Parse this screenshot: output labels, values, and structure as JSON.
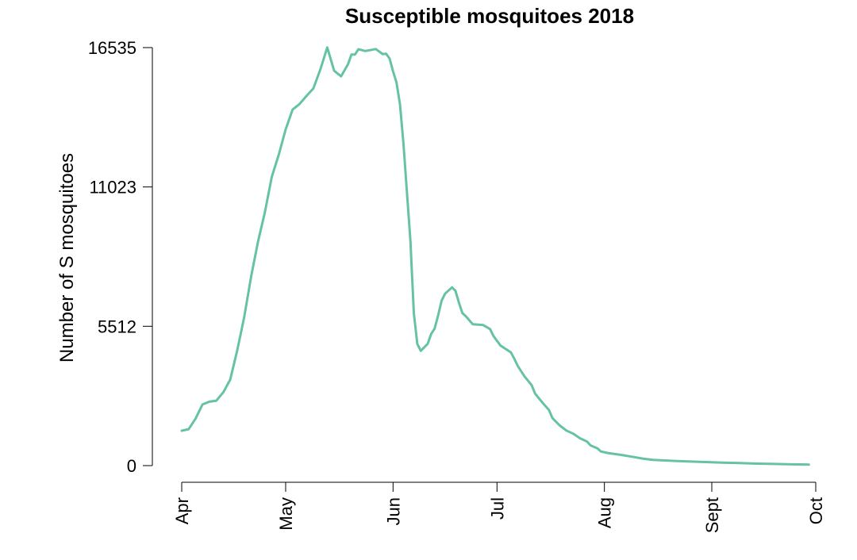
{
  "chart_data": {
    "type": "line",
    "title": "Susceptible mosquitoes 2018",
    "xlabel": "",
    "ylabel": "Number of S mosquitoes",
    "x_tick_labels": [
      "Apr",
      "May",
      "Jun",
      "Jul",
      "Aug",
      "Sept",
      "Oct"
    ],
    "x_tick_dates": [
      "2018-04-01",
      "2018-05-01",
      "2018-06-01",
      "2018-07-01",
      "2018-08-01",
      "2018-09-01",
      "2018-10-01"
    ],
    "y_tick_labels": [
      "0",
      "5512",
      "11023",
      "16535"
    ],
    "y_tick_values": [
      0,
      5512,
      11023,
      16535
    ],
    "ylim": [
      0,
      16535
    ],
    "xlim": [
      "2018-04-01",
      "2018-10-01"
    ],
    "grid": false,
    "legend": "none",
    "color": "#66c2a5",
    "series": [
      {
        "x": [
          "2018-04-01",
          "2018-04-03",
          "2018-04-05",
          "2018-04-07",
          "2018-04-09",
          "2018-04-11",
          "2018-04-13",
          "2018-04-15",
          "2018-04-17",
          "2018-04-19",
          "2018-04-21",
          "2018-04-23",
          "2018-04-25",
          "2018-04-27",
          "2018-04-29",
          "2018-05-01",
          "2018-05-03",
          "2018-05-05",
          "2018-05-07",
          "2018-05-09",
          "2018-05-11",
          "2018-05-13",
          "2018-05-15",
          "2018-05-17",
          "2018-05-19",
          "2018-05-20",
          "2018-05-21",
          "2018-05-22",
          "2018-05-24",
          "2018-05-26",
          "2018-05-27",
          "2018-05-29",
          "2018-05-30",
          "2018-05-31",
          "2018-06-01",
          "2018-06-02",
          "2018-06-03",
          "2018-06-04",
          "2018-06-06",
          "2018-06-07",
          "2018-06-08",
          "2018-06-09",
          "2018-06-11",
          "2018-06-12",
          "2018-06-13",
          "2018-06-14",
          "2018-06-15",
          "2018-06-16",
          "2018-06-18",
          "2018-06-19",
          "2018-06-20",
          "2018-06-21",
          "2018-06-22",
          "2018-06-24",
          "2018-06-27",
          "2018-06-28",
          "2018-06-29",
          "2018-06-30",
          "2018-07-02",
          "2018-07-05",
          "2018-07-06",
          "2018-07-07",
          "2018-07-09",
          "2018-07-11",
          "2018-07-12",
          "2018-07-14",
          "2018-07-16",
          "2018-07-17",
          "2018-07-19",
          "2018-07-21",
          "2018-07-23",
          "2018-07-25",
          "2018-07-27",
          "2018-07-28",
          "2018-07-30",
          "2018-07-31",
          "2018-08-02",
          "2018-08-06",
          "2018-08-09",
          "2018-08-12",
          "2018-08-15",
          "2018-08-19",
          "2018-08-22",
          "2018-08-26",
          "2018-08-30",
          "2018-09-04",
          "2018-09-09",
          "2018-09-14",
          "2018-09-19",
          "2018-09-24",
          "2018-09-29"
        ],
        "y": [
          1380,
          1440,
          1860,
          2420,
          2530,
          2570,
          2900,
          3400,
          4550,
          5850,
          7450,
          8850,
          10020,
          11420,
          12300,
          13300,
          14080,
          14300,
          14620,
          14920,
          15660,
          16540,
          15620,
          15400,
          15880,
          16260,
          16260,
          16470,
          16400,
          16450,
          16480,
          16280,
          16290,
          16100,
          15600,
          15150,
          14280,
          12750,
          8900,
          6040,
          4810,
          4540,
          4820,
          5210,
          5420,
          5940,
          6520,
          6800,
          7050,
          6920,
          6450,
          6030,
          5910,
          5590,
          5560,
          5480,
          5400,
          5120,
          4750,
          4480,
          4230,
          3940,
          3520,
          3180,
          2850,
          2510,
          2200,
          1880,
          1600,
          1390,
          1260,
          1080,
          950,
          800,
          680,
          560,
          500,
          420,
          350,
          280,
          230,
          200,
          180,
          160,
          140,
          120,
          100,
          80,
          65,
          50,
          40
        ]
      }
    ]
  }
}
